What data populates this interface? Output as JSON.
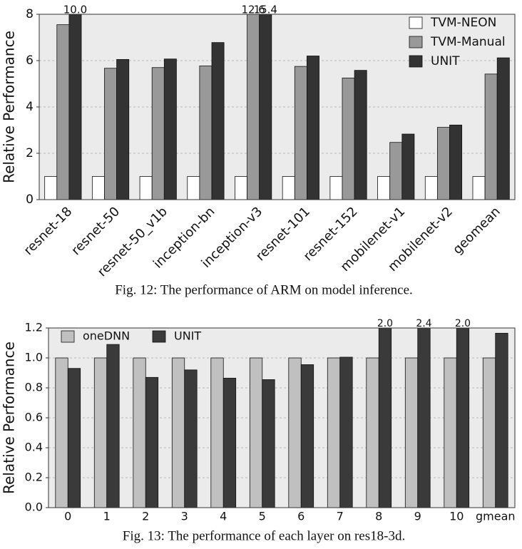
{
  "chart_data": [
    {
      "type": "bar",
      "caption": "Fig. 12: The performance of ARM on model inference.",
      "ylabel": "Relative Performance",
      "categories": [
        "resnet-18",
        "resnet-50",
        "resnet-50_v1b",
        "inception-bn",
        "inception-v3",
        "resnet-101",
        "resnet-152",
        "mobilenet-v1",
        "mobilenet-v2",
        "geomean"
      ],
      "series": [
        {
          "name": "TVM-NEON",
          "color": "#ffffff",
          "values": [
            1,
            1,
            1,
            1,
            1,
            1,
            1,
            1,
            1,
            1
          ]
        },
        {
          "name": "TVM-Manual",
          "color": "#999999",
          "values": [
            7.55,
            5.67,
            5.7,
            5.77,
            12.6,
            5.75,
            5.25,
            2.47,
            3.12,
            5.42
          ],
          "value_labels": [
            null,
            null,
            null,
            null,
            "12.6",
            null,
            null,
            null,
            null,
            null
          ]
        },
        {
          "name": "UNIT",
          "color": "#333333",
          "values": [
            10.0,
            6.05,
            6.07,
            6.78,
            15.4,
            6.2,
            5.58,
            2.83,
            3.22,
            6.12
          ],
          "value_labels": [
            "10.0",
            null,
            null,
            null,
            "15.4",
            null,
            null,
            null,
            null,
            null
          ]
        }
      ],
      "ylim": [
        0,
        8
      ],
      "yticks": [
        0,
        2,
        4,
        6,
        8
      ],
      "grid": true,
      "legend": "upper right"
    },
    {
      "type": "bar",
      "caption": "Fig. 13: The performance of each layer on res18-3d.",
      "ylabel": "Relative Performance",
      "categories": [
        "0",
        "1",
        "2",
        "3",
        "4",
        "5",
        "6",
        "7",
        "8",
        "9",
        "10",
        "gmean"
      ],
      "series": [
        {
          "name": "oneDNN",
          "color": "#c0c0c0",
          "values": [
            1,
            1,
            1,
            1,
            1,
            1,
            1,
            1,
            1,
            1,
            1,
            1
          ]
        },
        {
          "name": "UNIT",
          "color": "#3a3a3a",
          "values": [
            0.93,
            1.09,
            0.87,
            0.92,
            0.865,
            0.855,
            0.955,
            1.005,
            2.0,
            2.4,
            2.0,
            1.165
          ],
          "value_labels": [
            null,
            null,
            null,
            null,
            null,
            null,
            null,
            null,
            "2.0",
            "2.4",
            "2.0",
            null
          ]
        }
      ],
      "ylim": [
        0,
        1.2
      ],
      "yticks": [
        {
          "value": 0,
          "label": "0.0"
        },
        0.2,
        0.4,
        0.6,
        0.8,
        {
          "value": 1,
          "label": "1.0"
        },
        1.2
      ],
      "grid": true,
      "legend": "upper left"
    }
  ]
}
